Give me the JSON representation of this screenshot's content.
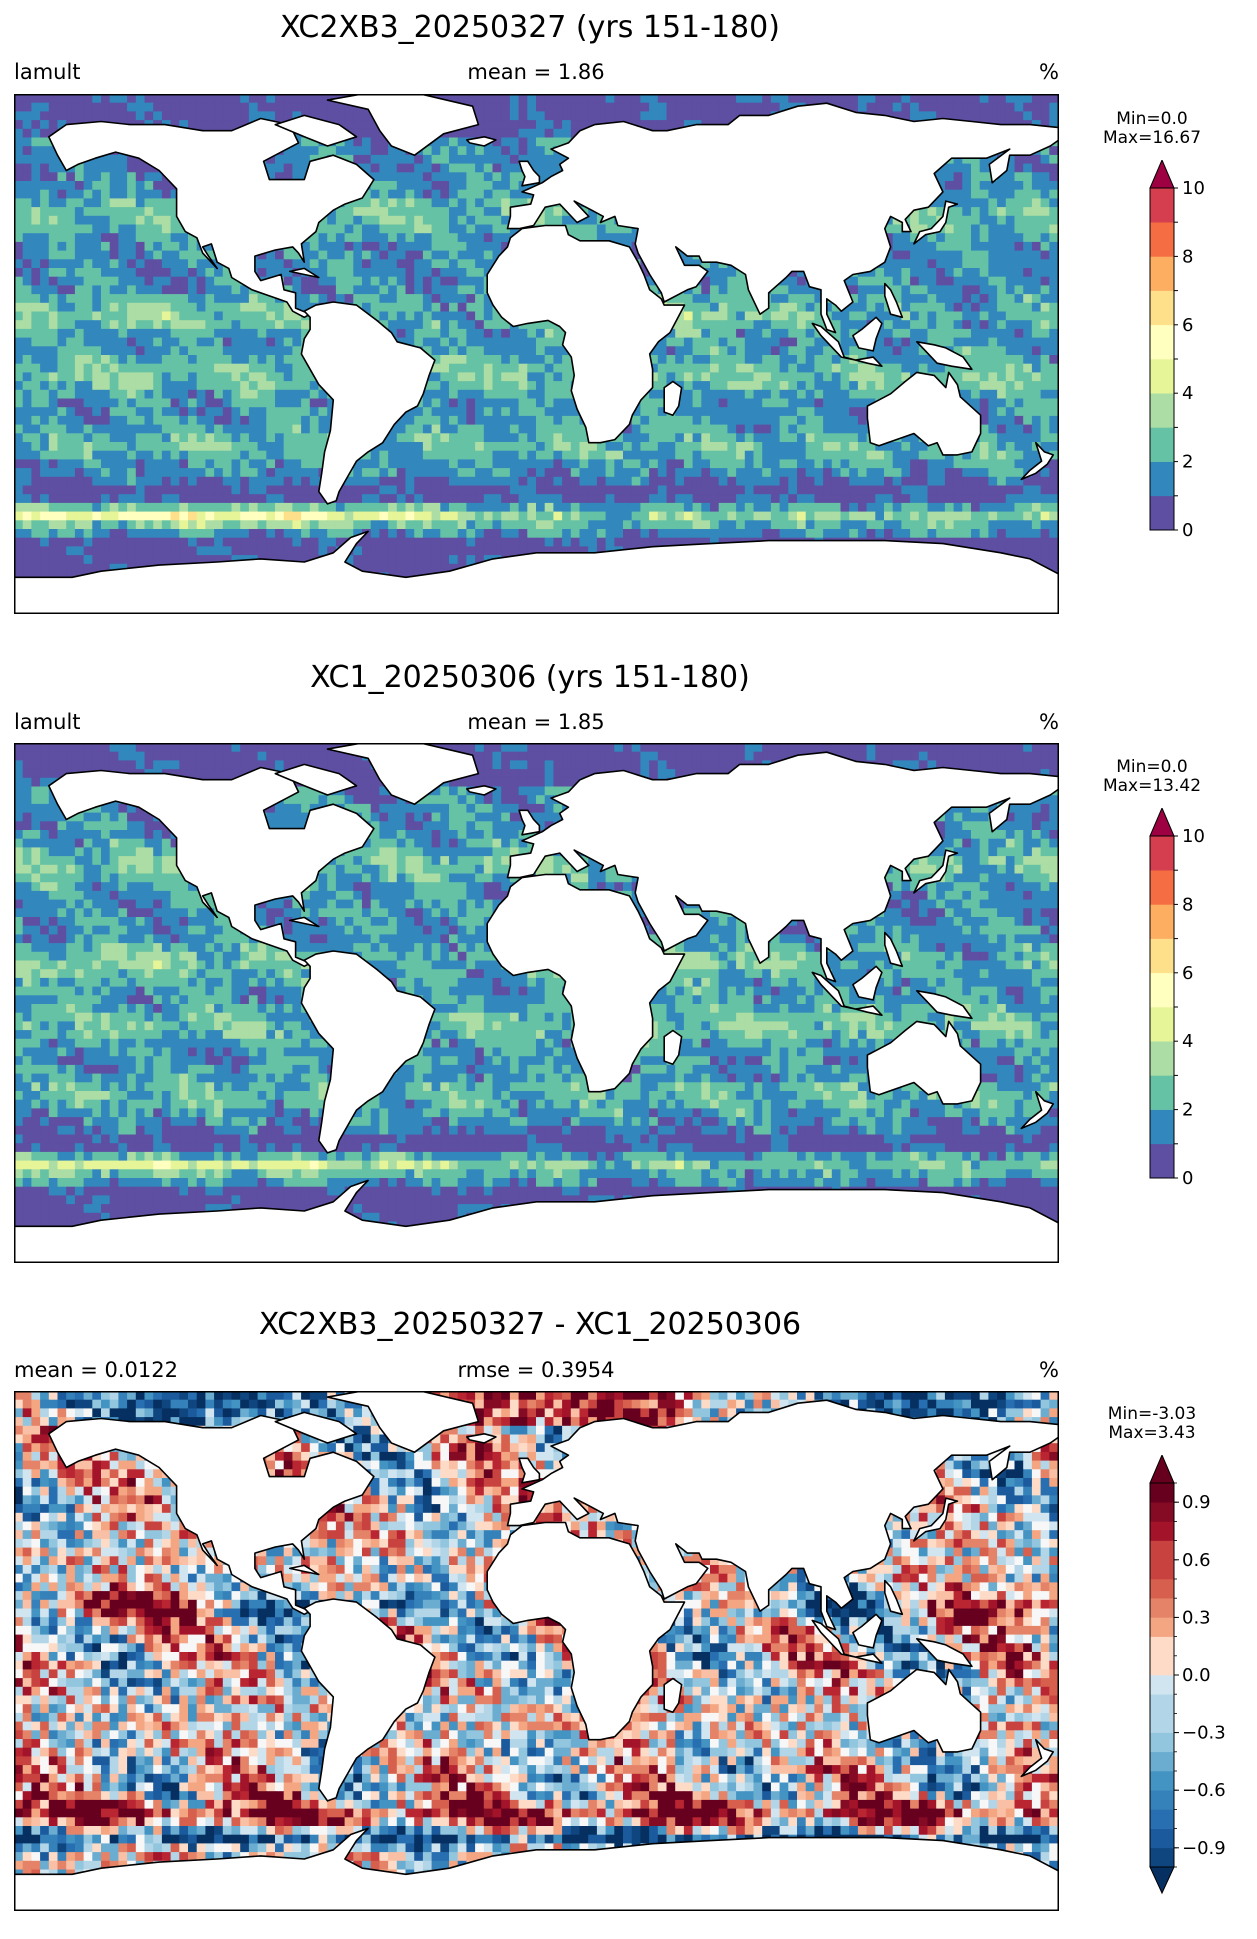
{
  "colors": {
    "spectral_r": [
      "#5e4fa2",
      "#3288bd",
      "#66c2a5",
      "#abdda4",
      "#e6f598",
      "#ffffbf",
      "#fee08b",
      "#fdae61",
      "#f46d43",
      "#d53e4f",
      "#9e0142"
    ],
    "rdbu_r_low": "#053061",
    "rdbu_r_mid": "#f7f7f7",
    "rdbu_r_high": "#67001f",
    "land": "#ffffff",
    "coast": "#000000"
  },
  "panels": [
    {
      "title": "XC2XB3_20250327 (yrs 151-180)",
      "left_label": "lamult",
      "center_label": "mean = 1.86",
      "right_label": "%",
      "min_label": "Min=0.0",
      "max_label": "Max=16.67"
    },
    {
      "title": "XC1_20250306 (yrs 151-180)",
      "left_label": "lamult",
      "center_label": "mean = 1.85",
      "right_label": "%",
      "min_label": "Min=0.0",
      "max_label": "Max=13.42"
    },
    {
      "title": "XC2XB3_20250327 - XC1_20250306",
      "left_label": "mean = 0.0122",
      "center_label": "rmse = 0.3954",
      "right_label": "%",
      "min_label": "Min=-3.03",
      "max_label": "Max=3.43"
    }
  ],
  "chart_data": [
    {
      "type": "heatmap",
      "title": "XC2XB3_20250327 (yrs 151-180)",
      "variable": "lamult",
      "units": "%",
      "mean": 1.86,
      "min": 0.0,
      "max": 16.67,
      "colorbar": {
        "levels": [
          0,
          1,
          2,
          3,
          4,
          5,
          6,
          7,
          8,
          9,
          10
        ],
        "tick_labels": [
          "0",
          "2",
          "4",
          "6",
          "8",
          "10"
        ],
        "extend": "max",
        "colormap": "Spectral_r"
      }
    },
    {
      "type": "heatmap",
      "title": "XC1_20250306 (yrs 151-180)",
      "variable": "lamult",
      "units": "%",
      "mean": 1.85,
      "min": 0.0,
      "max": 13.42,
      "colorbar": {
        "levels": [
          0,
          1,
          2,
          3,
          4,
          5,
          6,
          7,
          8,
          9,
          10
        ],
        "tick_labels": [
          "0",
          "2",
          "4",
          "6",
          "8",
          "10"
        ],
        "extend": "max",
        "colormap": "Spectral_r"
      }
    },
    {
      "type": "heatmap",
      "title": "XC2XB3_20250327 - XC1_20250306",
      "units": "%",
      "mean": 0.0122,
      "rmse": 0.3954,
      "min": -3.03,
      "max": 3.43,
      "colorbar": {
        "range": [
          -1.0,
          1.0
        ],
        "tick_values": [
          -0.9,
          -0.6,
          -0.3,
          0.0,
          0.3,
          0.6,
          0.9
        ],
        "tick_labels": [
          "−0.9",
          "−0.6",
          "−0.3",
          "0.0",
          "0.3",
          "0.6",
          "0.9"
        ],
        "extend": "both",
        "colormap": "RdBu_r"
      }
    }
  ]
}
